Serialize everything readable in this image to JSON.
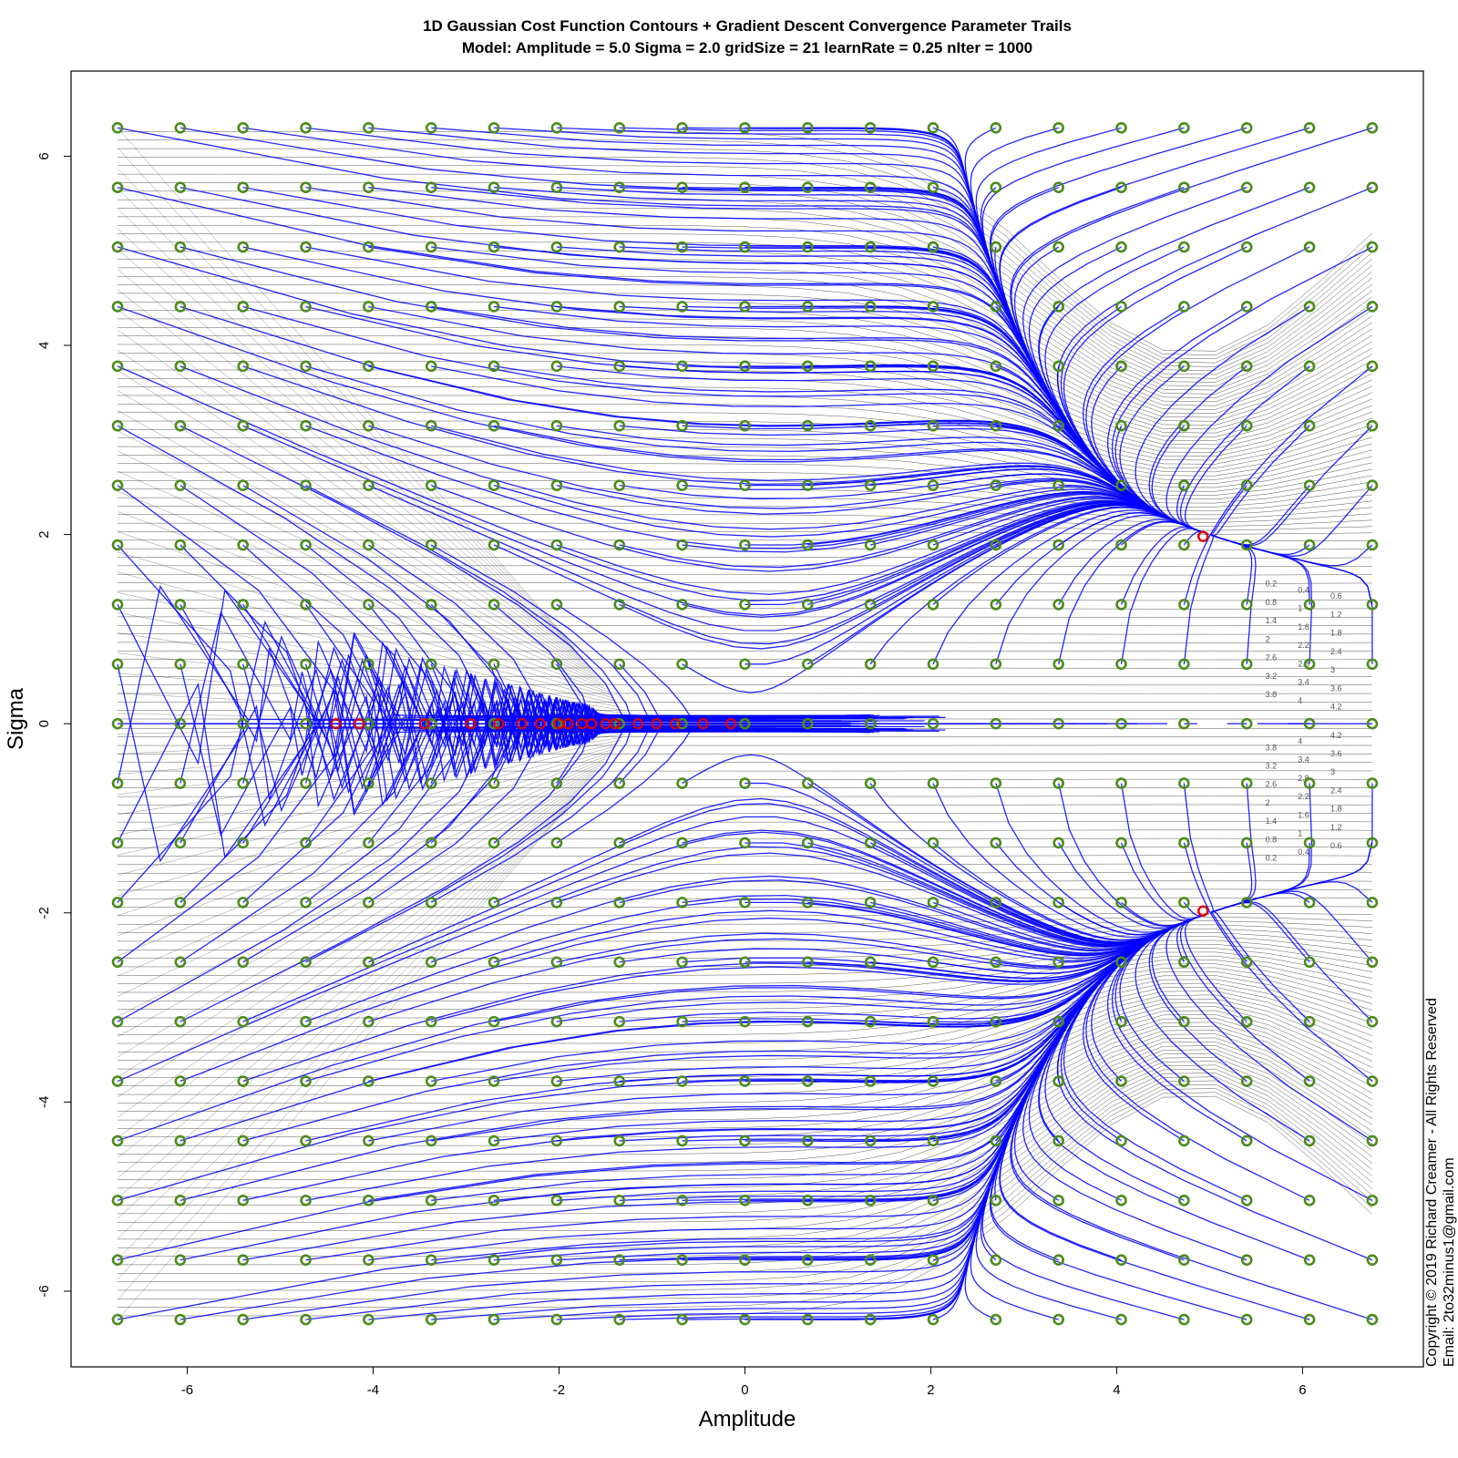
{
  "chart_data": {
    "type": "contour",
    "title": "1D Gaussian Cost Function Contours + Gradient Descent Convergence Parameter Trails",
    "subtitle": "Model: Amplitude = 5.0  Sigma = 2.0  gridSize = 21  learnRate = 0.25 nIter = 1000",
    "xlabel": "Amplitude",
    "ylabel": "Sigma",
    "xlim": [
      -7.25,
      7.3
    ],
    "ylim": [
      -6.8,
      6.9
    ],
    "x_ticks": [
      -6,
      -4,
      -2,
      0,
      2,
      4,
      6
    ],
    "y_ticks": [
      -6,
      -4,
      -2,
      0,
      2,
      4,
      6
    ],
    "x_tick_labels": [
      "-6",
      "-4",
      "-2",
      "0",
      "2",
      "4",
      "6"
    ],
    "y_tick_labels": [
      "-6",
      "-4",
      "-2",
      "0",
      "2",
      "4",
      "6"
    ],
    "grid": false,
    "model": {
      "amplitude": 5.0,
      "sigma": 2.0,
      "gridSize": 21,
      "learnRate": 0.25,
      "nIter": 1000
    },
    "start_grid": {
      "x_min": -6.75,
      "x_max": 6.75,
      "y_min": -6.3,
      "y_max": 6.3,
      "size": 21,
      "color": "#4a8c1c"
    },
    "minima": [
      {
        "x": 4.93,
        "y": 1.98
      },
      {
        "x": 4.93,
        "y": -1.98
      }
    ],
    "end_points": [
      {
        "x": -4.4,
        "y": 0.0
      },
      {
        "x": -4.15,
        "y": 0.0
      },
      {
        "x": -3.45,
        "y": 0.0
      },
      {
        "x": -2.95,
        "y": 0.0
      },
      {
        "x": -2.65,
        "y": 0.0
      },
      {
        "x": -2.4,
        "y": 0.0
      },
      {
        "x": -2.2,
        "y": 0.0
      },
      {
        "x": -2.0,
        "y": 0.0
      },
      {
        "x": -1.9,
        "y": 0.0
      },
      {
        "x": -1.75,
        "y": 0.0
      },
      {
        "x": -1.65,
        "y": 0.0
      },
      {
        "x": -1.5,
        "y": 0.0
      },
      {
        "x": -1.4,
        "y": 0.0
      },
      {
        "x": -1.15,
        "y": 0.0
      },
      {
        "x": -0.95,
        "y": 0.0
      },
      {
        "x": -0.75,
        "y": 0.0
      },
      {
        "x": -0.45,
        "y": 0.0
      },
      {
        "x": -0.15,
        "y": 0.0
      }
    ],
    "contour_labels": [
      "0.2",
      "0.4",
      "0.6",
      "0.8",
      "1",
      "1.2",
      "1.4",
      "1.6",
      "1.8",
      "2",
      "2.2",
      "2.4",
      "2.6",
      "2.8",
      "3",
      "3.2",
      "3.4",
      "3.6",
      "3.8",
      "4",
      "4.2"
    ],
    "colors": {
      "trail": "#0000ff",
      "start": "#4a8c1c",
      "end": "#e00000",
      "contour": "#000000"
    },
    "copyright": "Copyright © 2019 Richard Creamer - All Rights Reserved",
    "email": "Email: 2to32minus1@gmail.com"
  }
}
